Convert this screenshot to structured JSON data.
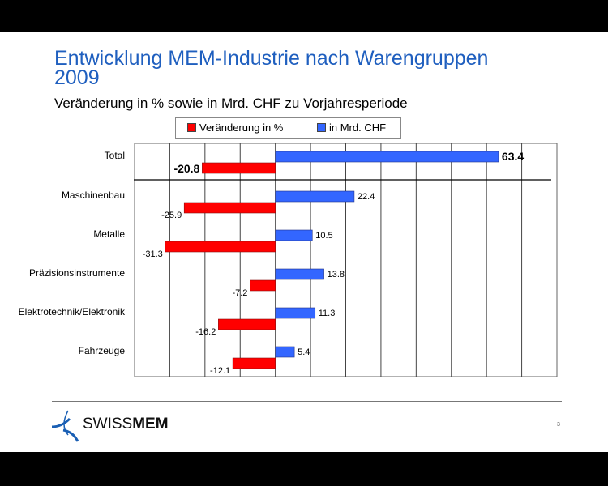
{
  "title": "Entwicklung MEM-Industrie nach Warengruppen 2009",
  "footer": {
    "logo": "SWISSMEM",
    "page": "3"
  },
  "chart_data": {
    "type": "bar",
    "orientation": "horizontal",
    "title": "Entwicklung MEM-Industrie nach Warengruppen 2009",
    "subtitle": "Veränderung in % sowie in Mrd. CHF zu Vorjahresperiode",
    "categories": [
      "Total",
      "Maschinenbau",
      "Metalle",
      "Präzisionsinstrumente",
      "Elektrotechnik/Elektronik",
      "Fahrzeuge"
    ],
    "series": [
      {
        "name": "Veränderung in %",
        "color": "#ff0000",
        "values": [
          -20.8,
          -25.9,
          -31.3,
          -7.2,
          -16.2,
          -12.1
        ]
      },
      {
        "name": "in Mrd. CHF",
        "color": "#3366ff",
        "values": [
          63.4,
          22.4,
          10.5,
          13.8,
          11.3,
          5.4
        ]
      }
    ],
    "xlim": [
      -40,
      80
    ],
    "grid": true,
    "legend": "top",
    "data_labels": [
      "-20.8",
      "63.4",
      "-25.9",
      "22.4",
      "-31.3",
      "10.5",
      "-7.2",
      "13.8",
      "-16.2",
      "11.3",
      "-12.1",
      "5.4"
    ]
  }
}
